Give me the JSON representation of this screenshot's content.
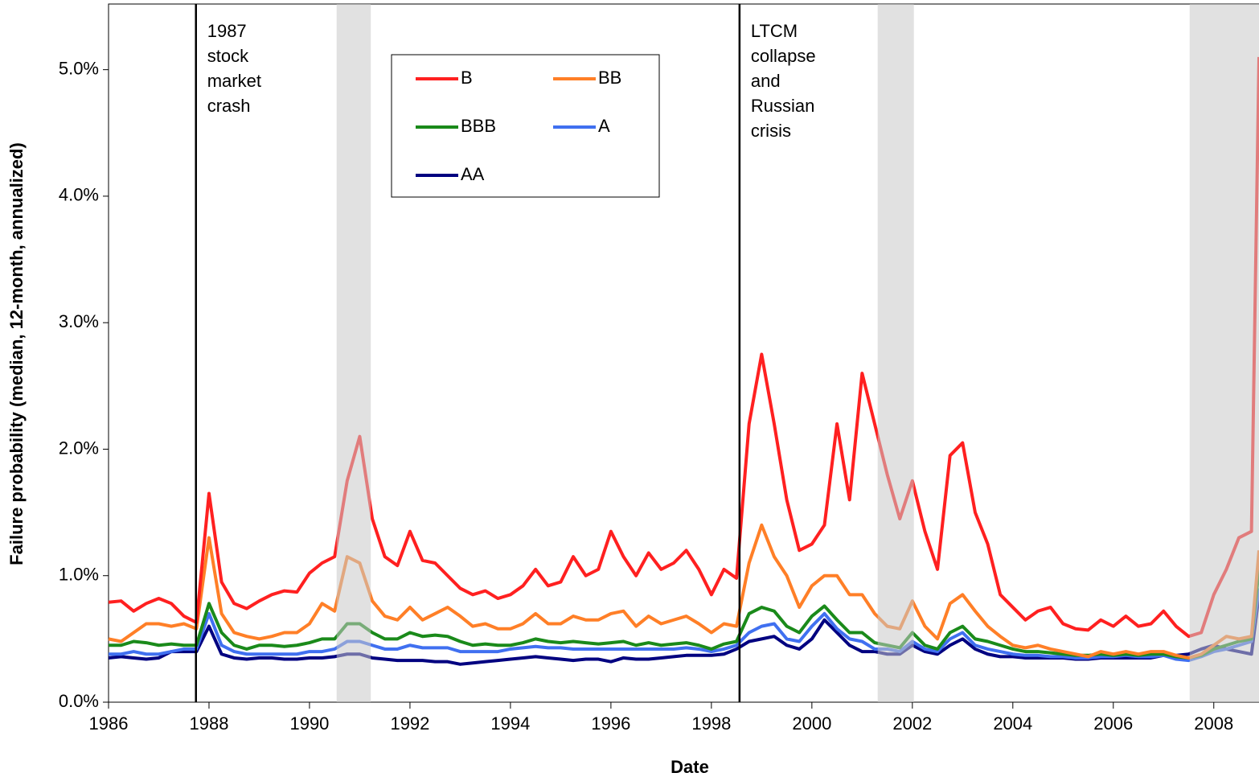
{
  "chart_data": {
    "type": "line",
    "x_label": "Date",
    "y_label": "Failure probability (median, 12-month, annualized)",
    "x": [
      1986,
      1986.25,
      1986.5,
      1986.75,
      1987,
      1987.25,
      1987.5,
      1987.75,
      1988,
      1988.25,
      1988.5,
      1988.75,
      1989,
      1989.25,
      1989.5,
      1989.75,
      1990,
      1990.25,
      1990.5,
      1990.75,
      1991,
      1991.25,
      1991.5,
      1991.75,
      1992,
      1992.25,
      1992.5,
      1992.75,
      1993,
      1993.25,
      1993.5,
      1993.75,
      1994,
      1994.25,
      1994.5,
      1994.75,
      1995,
      1995.25,
      1995.5,
      1995.75,
      1996,
      1996.25,
      1996.5,
      1996.75,
      1997,
      1997.25,
      1997.5,
      1997.75,
      1998,
      1998.25,
      1998.5,
      1998.75,
      1999,
      1999.25,
      1999.5,
      1999.75,
      2000,
      2000.25,
      2000.5,
      2000.75,
      2001,
      2001.25,
      2001.5,
      2001.75,
      2002,
      2002.25,
      2002.5,
      2002.75,
      2003,
      2003.25,
      2003.5,
      2003.75,
      2004,
      2004.25,
      2004.5,
      2004.75,
      2005,
      2005.25,
      2005.5,
      2005.75,
      2006,
      2006.25,
      2006.5,
      2006.75,
      2007,
      2007.25,
      2007.5,
      2007.75,
      2008,
      2008.25,
      2008.5,
      2008.75,
      2008.9
    ],
    "series": [
      {
        "name": "B",
        "color": "#ff2020",
        "values": [
          0.79,
          0.8,
          0.72,
          0.78,
          0.82,
          0.78,
          0.68,
          0.63,
          1.65,
          0.95,
          0.78,
          0.74,
          0.8,
          0.85,
          0.88,
          0.87,
          1.02,
          1.1,
          1.15,
          1.75,
          2.1,
          1.45,
          1.15,
          1.08,
          1.35,
          1.12,
          1.1,
          1.0,
          0.9,
          0.85,
          0.88,
          0.82,
          0.85,
          0.92,
          1.05,
          0.92,
          0.95,
          1.15,
          1.0,
          1.05,
          1.35,
          1.15,
          1.0,
          1.18,
          1.05,
          1.1,
          1.2,
          1.05,
          0.85,
          1.05,
          0.98,
          2.2,
          2.75,
          2.2,
          1.6,
          1.2,
          1.25,
          1.4,
          2.2,
          1.6,
          2.6,
          2.2,
          1.8,
          1.45,
          1.75,
          1.35,
          1.05,
          1.95,
          2.05,
          1.5,
          1.25,
          0.85,
          0.75,
          0.65,
          0.72,
          0.75,
          0.62,
          0.58,
          0.57,
          0.65,
          0.6,
          0.68,
          0.6,
          0.62,
          0.72,
          0.6,
          0.52,
          0.55,
          0.85,
          1.05,
          1.3,
          1.35,
          5.1
        ]
      },
      {
        "name": "BB",
        "color": "#ff7f27",
        "values": [
          0.5,
          0.48,
          0.55,
          0.62,
          0.62,
          0.6,
          0.62,
          0.58,
          1.3,
          0.7,
          0.55,
          0.52,
          0.5,
          0.52,
          0.55,
          0.55,
          0.62,
          0.78,
          0.72,
          1.15,
          1.1,
          0.8,
          0.68,
          0.65,
          0.75,
          0.65,
          0.7,
          0.75,
          0.68,
          0.6,
          0.62,
          0.58,
          0.58,
          0.62,
          0.7,
          0.62,
          0.62,
          0.68,
          0.65,
          0.65,
          0.7,
          0.72,
          0.6,
          0.68,
          0.62,
          0.65,
          0.68,
          0.62,
          0.55,
          0.62,
          0.6,
          1.1,
          1.4,
          1.15,
          1.0,
          0.75,
          0.92,
          1.0,
          1.0,
          0.85,
          0.85,
          0.7,
          0.6,
          0.58,
          0.8,
          0.6,
          0.5,
          0.78,
          0.85,
          0.72,
          0.6,
          0.52,
          0.45,
          0.43,
          0.45,
          0.42,
          0.4,
          0.38,
          0.36,
          0.4,
          0.38,
          0.4,
          0.38,
          0.4,
          0.4,
          0.37,
          0.35,
          0.38,
          0.45,
          0.52,
          0.5,
          0.52,
          1.2
        ]
      },
      {
        "name": "BBB",
        "color": "#1a8a1a",
        "values": [
          0.45,
          0.45,
          0.48,
          0.47,
          0.45,
          0.46,
          0.45,
          0.45,
          0.78,
          0.55,
          0.45,
          0.42,
          0.45,
          0.45,
          0.44,
          0.45,
          0.47,
          0.5,
          0.5,
          0.62,
          0.62,
          0.55,
          0.5,
          0.5,
          0.55,
          0.52,
          0.53,
          0.52,
          0.48,
          0.45,
          0.46,
          0.45,
          0.45,
          0.47,
          0.5,
          0.48,
          0.47,
          0.48,
          0.47,
          0.46,
          0.47,
          0.48,
          0.45,
          0.47,
          0.45,
          0.46,
          0.47,
          0.45,
          0.42,
          0.46,
          0.48,
          0.7,
          0.75,
          0.72,
          0.6,
          0.55,
          0.68,
          0.76,
          0.65,
          0.55,
          0.55,
          0.47,
          0.45,
          0.43,
          0.55,
          0.45,
          0.42,
          0.55,
          0.6,
          0.5,
          0.48,
          0.45,
          0.42,
          0.4,
          0.4,
          0.39,
          0.38,
          0.37,
          0.37,
          0.38,
          0.37,
          0.38,
          0.37,
          0.38,
          0.38,
          0.36,
          0.35,
          0.37,
          0.42,
          0.45,
          0.48,
          0.5,
          1.05
        ]
      },
      {
        "name": "A",
        "color": "#4070f0",
        "values": [
          0.38,
          0.38,
          0.4,
          0.38,
          0.38,
          0.4,
          0.42,
          0.42,
          0.7,
          0.45,
          0.4,
          0.38,
          0.38,
          0.38,
          0.38,
          0.38,
          0.4,
          0.4,
          0.42,
          0.48,
          0.48,
          0.45,
          0.42,
          0.42,
          0.45,
          0.43,
          0.43,
          0.43,
          0.4,
          0.4,
          0.4,
          0.4,
          0.42,
          0.43,
          0.44,
          0.43,
          0.43,
          0.42,
          0.42,
          0.42,
          0.42,
          0.42,
          0.42,
          0.42,
          0.42,
          0.42,
          0.43,
          0.42,
          0.4,
          0.42,
          0.45,
          0.55,
          0.6,
          0.62,
          0.5,
          0.48,
          0.6,
          0.7,
          0.58,
          0.5,
          0.48,
          0.42,
          0.42,
          0.4,
          0.48,
          0.42,
          0.4,
          0.5,
          0.55,
          0.45,
          0.42,
          0.4,
          0.38,
          0.37,
          0.37,
          0.36,
          0.36,
          0.35,
          0.35,
          0.36,
          0.36,
          0.37,
          0.36,
          0.36,
          0.37,
          0.34,
          0.33,
          0.36,
          0.4,
          0.42,
          0.45,
          0.48,
          0.9
        ]
      },
      {
        "name": "AA",
        "color": "#000080",
        "values": [
          0.35,
          0.36,
          0.35,
          0.34,
          0.35,
          0.4,
          0.4,
          0.4,
          0.6,
          0.38,
          0.35,
          0.34,
          0.35,
          0.35,
          0.34,
          0.34,
          0.35,
          0.35,
          0.36,
          0.38,
          0.38,
          0.35,
          0.34,
          0.33,
          0.33,
          0.33,
          0.32,
          0.32,
          0.3,
          0.31,
          0.32,
          0.33,
          0.34,
          0.35,
          0.36,
          0.35,
          0.34,
          0.33,
          0.34,
          0.34,
          0.32,
          0.35,
          0.34,
          0.34,
          0.35,
          0.36,
          0.37,
          0.37,
          0.37,
          0.38,
          0.42,
          0.48,
          0.5,
          0.52,
          0.45,
          0.42,
          0.5,
          0.65,
          0.55,
          0.45,
          0.4,
          0.4,
          0.38,
          0.38,
          0.45,
          0.4,
          0.38,
          0.45,
          0.5,
          0.42,
          0.38,
          0.36,
          0.36,
          0.35,
          0.35,
          0.35,
          0.35,
          0.34,
          0.34,
          0.35,
          0.35,
          0.35,
          0.35,
          0.35,
          0.37,
          0.37,
          0.38,
          0.42,
          0.45,
          0.42,
          0.4,
          0.38,
          0.85
        ]
      }
    ],
    "xlim": [
      1986,
      2008.9
    ],
    "xticks": [
      1986,
      1988,
      1990,
      1992,
      1994,
      1996,
      1998,
      2000,
      2002,
      2004,
      2006,
      2008
    ],
    "ylim": [
      0,
      5.5
    ],
    "yticks": [
      {
        "value": 0,
        "label": "0.0%"
      },
      {
        "value": 1,
        "label": "1.0%"
      },
      {
        "value": 2,
        "label": "2.0%"
      },
      {
        "value": 3,
        "label": "3.0%"
      },
      {
        "value": 4,
        "label": "4.0%"
      },
      {
        "value": 5,
        "label": "5.0%"
      }
    ],
    "shaded_periods": [
      [
        1990.54,
        1991.22
      ],
      [
        2001.31,
        2002.03
      ],
      [
        2007.52,
        2008.9
      ]
    ],
    "events": [
      {
        "x": 1987.74,
        "lines": [
          "1987",
          "stock",
          "market",
          "crash"
        ]
      },
      {
        "x": 1998.56,
        "lines": [
          "LTCM",
          "collapse",
          "and",
          "Russian",
          "crisis"
        ]
      }
    ]
  }
}
